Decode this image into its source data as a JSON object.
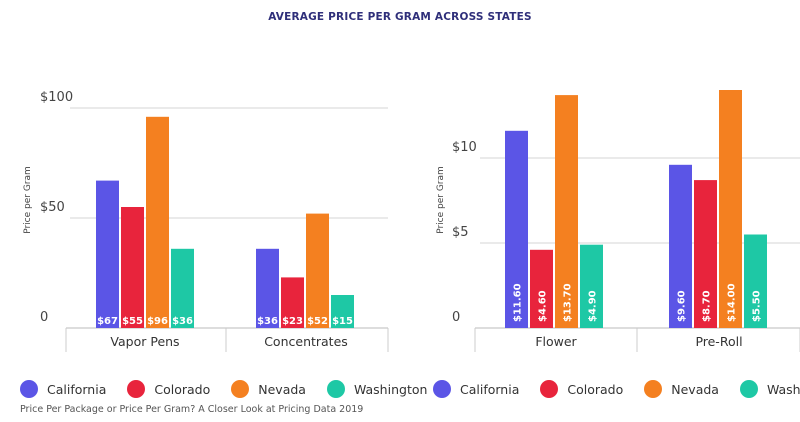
{
  "title": "AVERAGE PRICE PER GRAM ACROSS STATES",
  "source": "Price Per Package or Price Per Gram? A Closer Look at Pricing Data 2019",
  "colors": {
    "California": "#5b55e6",
    "Colorado": "#e8243c",
    "Nevada": "#f48020",
    "Washington": "#1ec8a5"
  },
  "chart_data": [
    {
      "type": "bar",
      "ylabel": "Price per Gram",
      "ylim": [
        0,
        110
      ],
      "yticks": [
        {
          "v": 0,
          "label": "0"
        },
        {
          "v": 50,
          "label": "$50"
        },
        {
          "v": 100,
          "label": "$100"
        }
      ],
      "categories": [
        "Vapor Pens",
        "Concentrates"
      ],
      "series": [
        {
          "name": "California",
          "values": [
            67,
            36
          ],
          "labels": [
            "$67",
            "$36"
          ]
        },
        {
          "name": "Colorado",
          "values": [
            55,
            23
          ],
          "labels": [
            "$55",
            "$23"
          ]
        },
        {
          "name": "Nevada",
          "values": [
            96,
            52
          ],
          "labels": [
            "$96",
            "$52"
          ]
        },
        {
          "name": "Washington",
          "values": [
            36,
            15
          ],
          "labels": [
            "$36",
            "$15"
          ]
        }
      ],
      "grid": true,
      "legend": "bottom",
      "label_style": "horizontal"
    },
    {
      "type": "bar",
      "ylabel": "Price per Gram",
      "ylim": [
        0,
        15
      ],
      "yticks": [
        {
          "v": 0,
          "label": "0"
        },
        {
          "v": 5,
          "label": "$5"
        },
        {
          "v": 10,
          "label": "$10"
        }
      ],
      "categories": [
        "Flower",
        "Pre-Roll"
      ],
      "series": [
        {
          "name": "California",
          "values": [
            11.6,
            9.6
          ],
          "labels": [
            "$11.60",
            "$9.60"
          ]
        },
        {
          "name": "Colorado",
          "values": [
            4.6,
            8.7
          ],
          "labels": [
            "$4.60",
            "$8.70"
          ]
        },
        {
          "name": "Nevada",
          "values": [
            13.7,
            14.0
          ],
          "labels": [
            "$13.70",
            "$14.00"
          ]
        },
        {
          "name": "Washington",
          "values": [
            4.9,
            5.5
          ],
          "labels": [
            "$4.90",
            "$5.50"
          ]
        }
      ],
      "grid": true,
      "legend": "bottom",
      "label_style": "vertical"
    }
  ]
}
